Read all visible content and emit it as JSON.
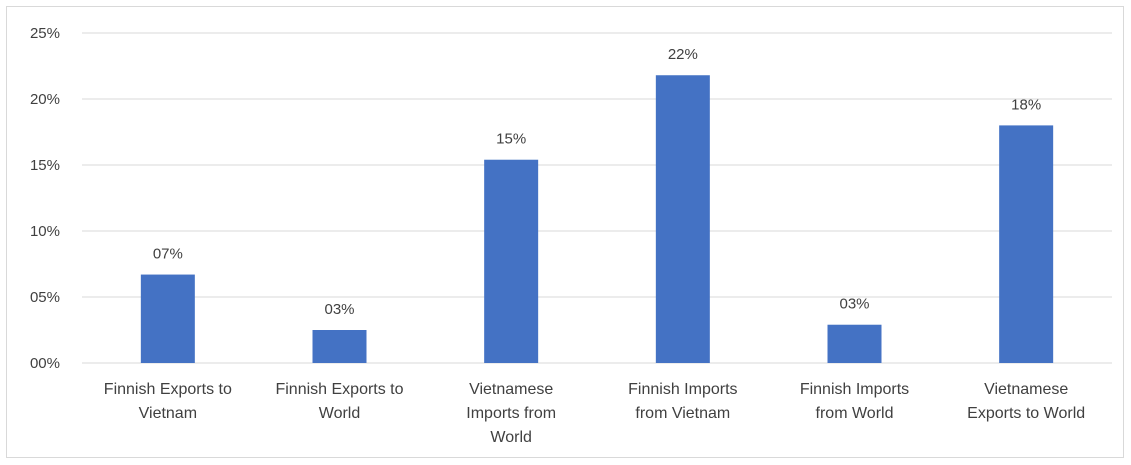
{
  "chart_data": {
    "type": "bar",
    "categories": [
      [
        "Finnish Exports to",
        "Vietnam"
      ],
      [
        "Finnish Exports to",
        "World"
      ],
      [
        "Vietnamese",
        "Imports from",
        "World"
      ],
      [
        "Finnish Imports",
        "from Vietnam"
      ],
      [
        "Finnish Imports",
        "from World"
      ],
      [
        "Vietnamese",
        "Exports to World"
      ]
    ],
    "values": [
      6.7,
      2.5,
      15.4,
      21.8,
      2.9,
      18.0
    ],
    "data_labels": [
      "07%",
      "03%",
      "15%",
      "22%",
      "03%",
      "18%"
    ],
    "yticks": [
      "00%",
      "05%",
      "10%",
      "15%",
      "20%",
      "25%"
    ],
    "ylim": [
      0,
      25
    ],
    "grid": true,
    "bar_color": "#4472c4",
    "gridline_color": "#d9d9d9",
    "text_color": "#404040"
  }
}
